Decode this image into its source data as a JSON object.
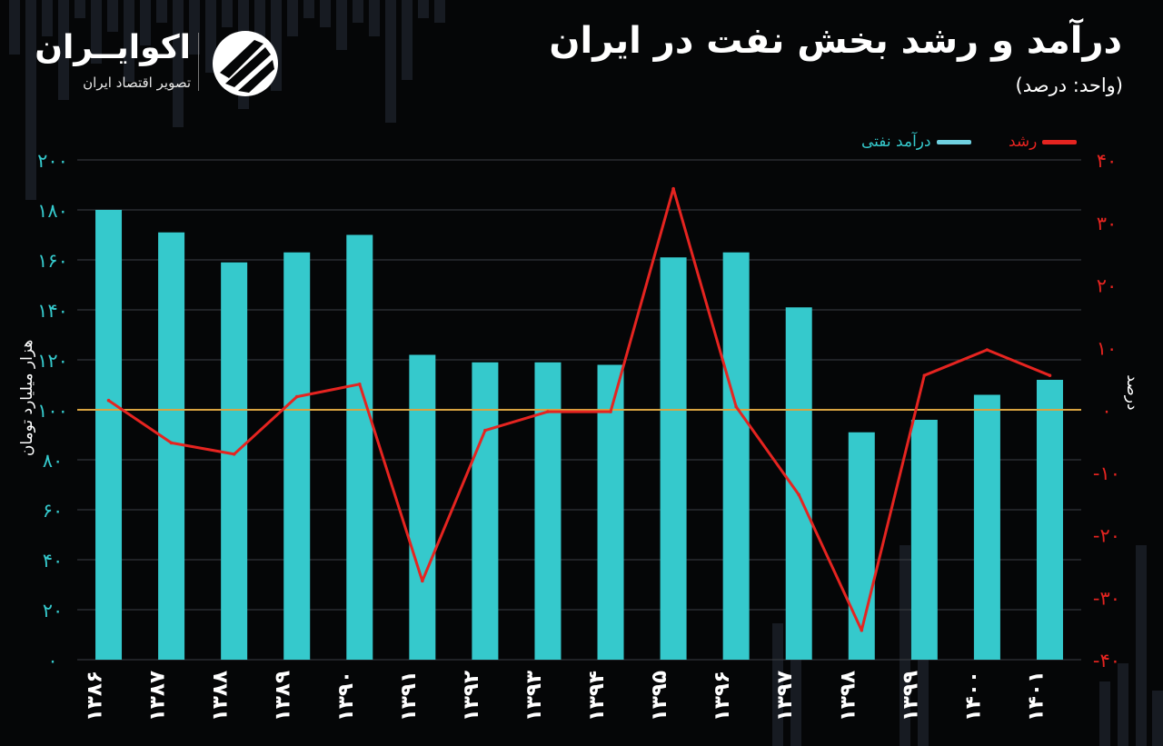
{
  "title": "درآمد و رشد بخش نفت در ایران",
  "subtitle": "(واحد: درصد)",
  "brand": {
    "name": "اکوایــران",
    "tagline": "تصویر اقتصاد ایران"
  },
  "colors": {
    "background": "#050607",
    "bars": "#35c9cc",
    "growth_line": "#e52420",
    "reference_line": "#d9a441",
    "grid": "#3b3f44"
  },
  "chart_data": {
    "type": "bar",
    "categories": [
      "۱۳۸۶",
      "۱۳۸۷",
      "۱۳۸۸",
      "۱۳۸۹",
      "۱۳۹۰",
      "۱۳۹۱",
      "۱۳۹۲",
      "۱۳۹۳",
      "۱۳۹۴",
      "۱۳۹۵",
      "۱۳۹۶",
      "۱۳۹۷",
      "۱۳۹۸",
      "۱۳۹۹",
      "۱۴۰۰",
      "۱۴۰۱"
    ],
    "series": [
      {
        "name": "درآمد نفتی",
        "type": "bar",
        "axis": "left",
        "values": [
          180,
          171,
          159,
          163,
          170,
          122,
          119,
          119,
          118,
          161,
          163,
          141,
          91,
          96,
          106,
          112
        ]
      },
      {
        "name": "رشد",
        "type": "line",
        "axis": "right",
        "values": [
          1.5,
          -5.3,
          -7.1,
          2.1,
          4.1,
          -27.4,
          -3.3,
          -0.3,
          -0.3,
          35.4,
          0.5,
          -13.6,
          -35.3,
          5.5,
          9.6,
          5.5
        ]
      }
    ],
    "ylabel": "هزار میلیارد تومان",
    "y2label": "درصد",
    "ylim": [
      0,
      200
    ],
    "yticks": [
      "۰",
      "۲۰",
      "۴۰",
      "۶۰",
      "۸۰",
      "۱۰۰",
      "۱۲۰",
      "۱۴۰",
      "۱۶۰",
      "۱۸۰",
      "۲۰۰"
    ],
    "y2lim": [
      -40,
      40
    ],
    "y2ticks": [
      "-۴۰",
      "-۳۰",
      "-۲۰",
      "-۱۰",
      "۰",
      "۱۰",
      "۲۰",
      "۳۰",
      "۴۰"
    ],
    "reference_line": 0,
    "grid": true,
    "legend_position": "top-right"
  }
}
